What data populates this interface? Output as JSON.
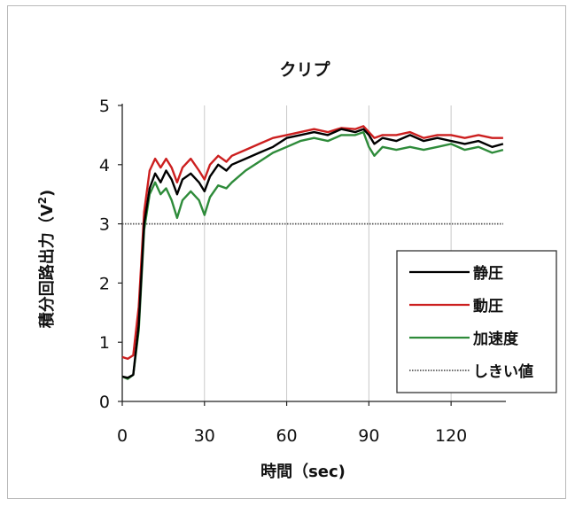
{
  "chart_data": {
    "type": "line",
    "title": "クリプ",
    "xlabel": "時間（sec)",
    "ylabel": "積分回路出力（V",
    "ylabel_sup": "2",
    "ylabel_close": ")",
    "xlim": [
      0,
      140
    ],
    "ylim": [
      0,
      5
    ],
    "xticks": [
      0,
      30,
      60,
      90,
      120
    ],
    "yticks": [
      0,
      1,
      2,
      3,
      4,
      5
    ],
    "xtick_labels": [
      "0",
      "30",
      "60",
      "90",
      "120"
    ],
    "ytick_labels": [
      "0",
      "1",
      "2",
      "3",
      "4",
      "5"
    ],
    "grid": "vertical",
    "legend_position": "right",
    "series": [
      {
        "name": "静圧",
        "color": "#000000",
        "style": "solid",
        "x": [
          0,
          2,
          4,
          6,
          8,
          10,
          12,
          14,
          16,
          18,
          20,
          22,
          25,
          28,
          30,
          32,
          35,
          38,
          40,
          45,
          50,
          55,
          60,
          65,
          70,
          75,
          80,
          85,
          88,
          90,
          92,
          95,
          100,
          105,
          110,
          115,
          120,
          125,
          130,
          135,
          139
        ],
        "y": [
          0.42,
          0.4,
          0.45,
          1.3,
          3.0,
          3.6,
          3.85,
          3.7,
          3.9,
          3.75,
          3.5,
          3.75,
          3.85,
          3.7,
          3.55,
          3.8,
          4.0,
          3.9,
          4.0,
          4.1,
          4.2,
          4.3,
          4.45,
          4.5,
          4.55,
          4.5,
          4.6,
          4.55,
          4.6,
          4.5,
          4.35,
          4.45,
          4.4,
          4.5,
          4.4,
          4.45,
          4.4,
          4.35,
          4.4,
          4.3,
          4.35
        ]
      },
      {
        "name": "動圧",
        "color": "#cc1f1f",
        "style": "solid",
        "x": [
          0,
          2,
          4,
          6,
          8,
          10,
          12,
          14,
          16,
          18,
          20,
          22,
          25,
          28,
          30,
          32,
          35,
          38,
          40,
          45,
          50,
          55,
          60,
          65,
          70,
          75,
          80,
          85,
          88,
          90,
          92,
          95,
          100,
          105,
          110,
          115,
          120,
          125,
          130,
          135,
          139
        ],
        "y": [
          0.75,
          0.72,
          0.78,
          1.6,
          3.2,
          3.9,
          4.1,
          3.95,
          4.1,
          3.95,
          3.7,
          3.95,
          4.1,
          3.9,
          3.75,
          4.0,
          4.15,
          4.05,
          4.15,
          4.25,
          4.35,
          4.45,
          4.5,
          4.55,
          4.6,
          4.55,
          4.62,
          4.6,
          4.65,
          4.55,
          4.45,
          4.5,
          4.5,
          4.55,
          4.45,
          4.5,
          4.5,
          4.45,
          4.5,
          4.45,
          4.45
        ]
      },
      {
        "name": "加速度",
        "color": "#2e8b3a",
        "style": "solid",
        "x": [
          0,
          2,
          4,
          6,
          8,
          10,
          12,
          14,
          16,
          18,
          20,
          22,
          25,
          28,
          30,
          32,
          35,
          38,
          40,
          45,
          50,
          55,
          60,
          65,
          70,
          75,
          80,
          85,
          88,
          90,
          92,
          95,
          100,
          105,
          110,
          115,
          120,
          125,
          130,
          135,
          139
        ],
        "y": [
          0.42,
          0.38,
          0.45,
          1.2,
          2.9,
          3.5,
          3.7,
          3.5,
          3.6,
          3.4,
          3.1,
          3.4,
          3.55,
          3.4,
          3.15,
          3.45,
          3.65,
          3.6,
          3.7,
          3.9,
          4.05,
          4.2,
          4.3,
          4.4,
          4.45,
          4.4,
          4.5,
          4.5,
          4.55,
          4.3,
          4.15,
          4.3,
          4.25,
          4.3,
          4.25,
          4.3,
          4.35,
          4.25,
          4.3,
          4.2,
          4.25
        ]
      },
      {
        "name": "しきい値",
        "color": "#555555",
        "style": "dotted",
        "x": [
          0,
          139
        ],
        "y": [
          3.0,
          3.0
        ]
      }
    ]
  }
}
